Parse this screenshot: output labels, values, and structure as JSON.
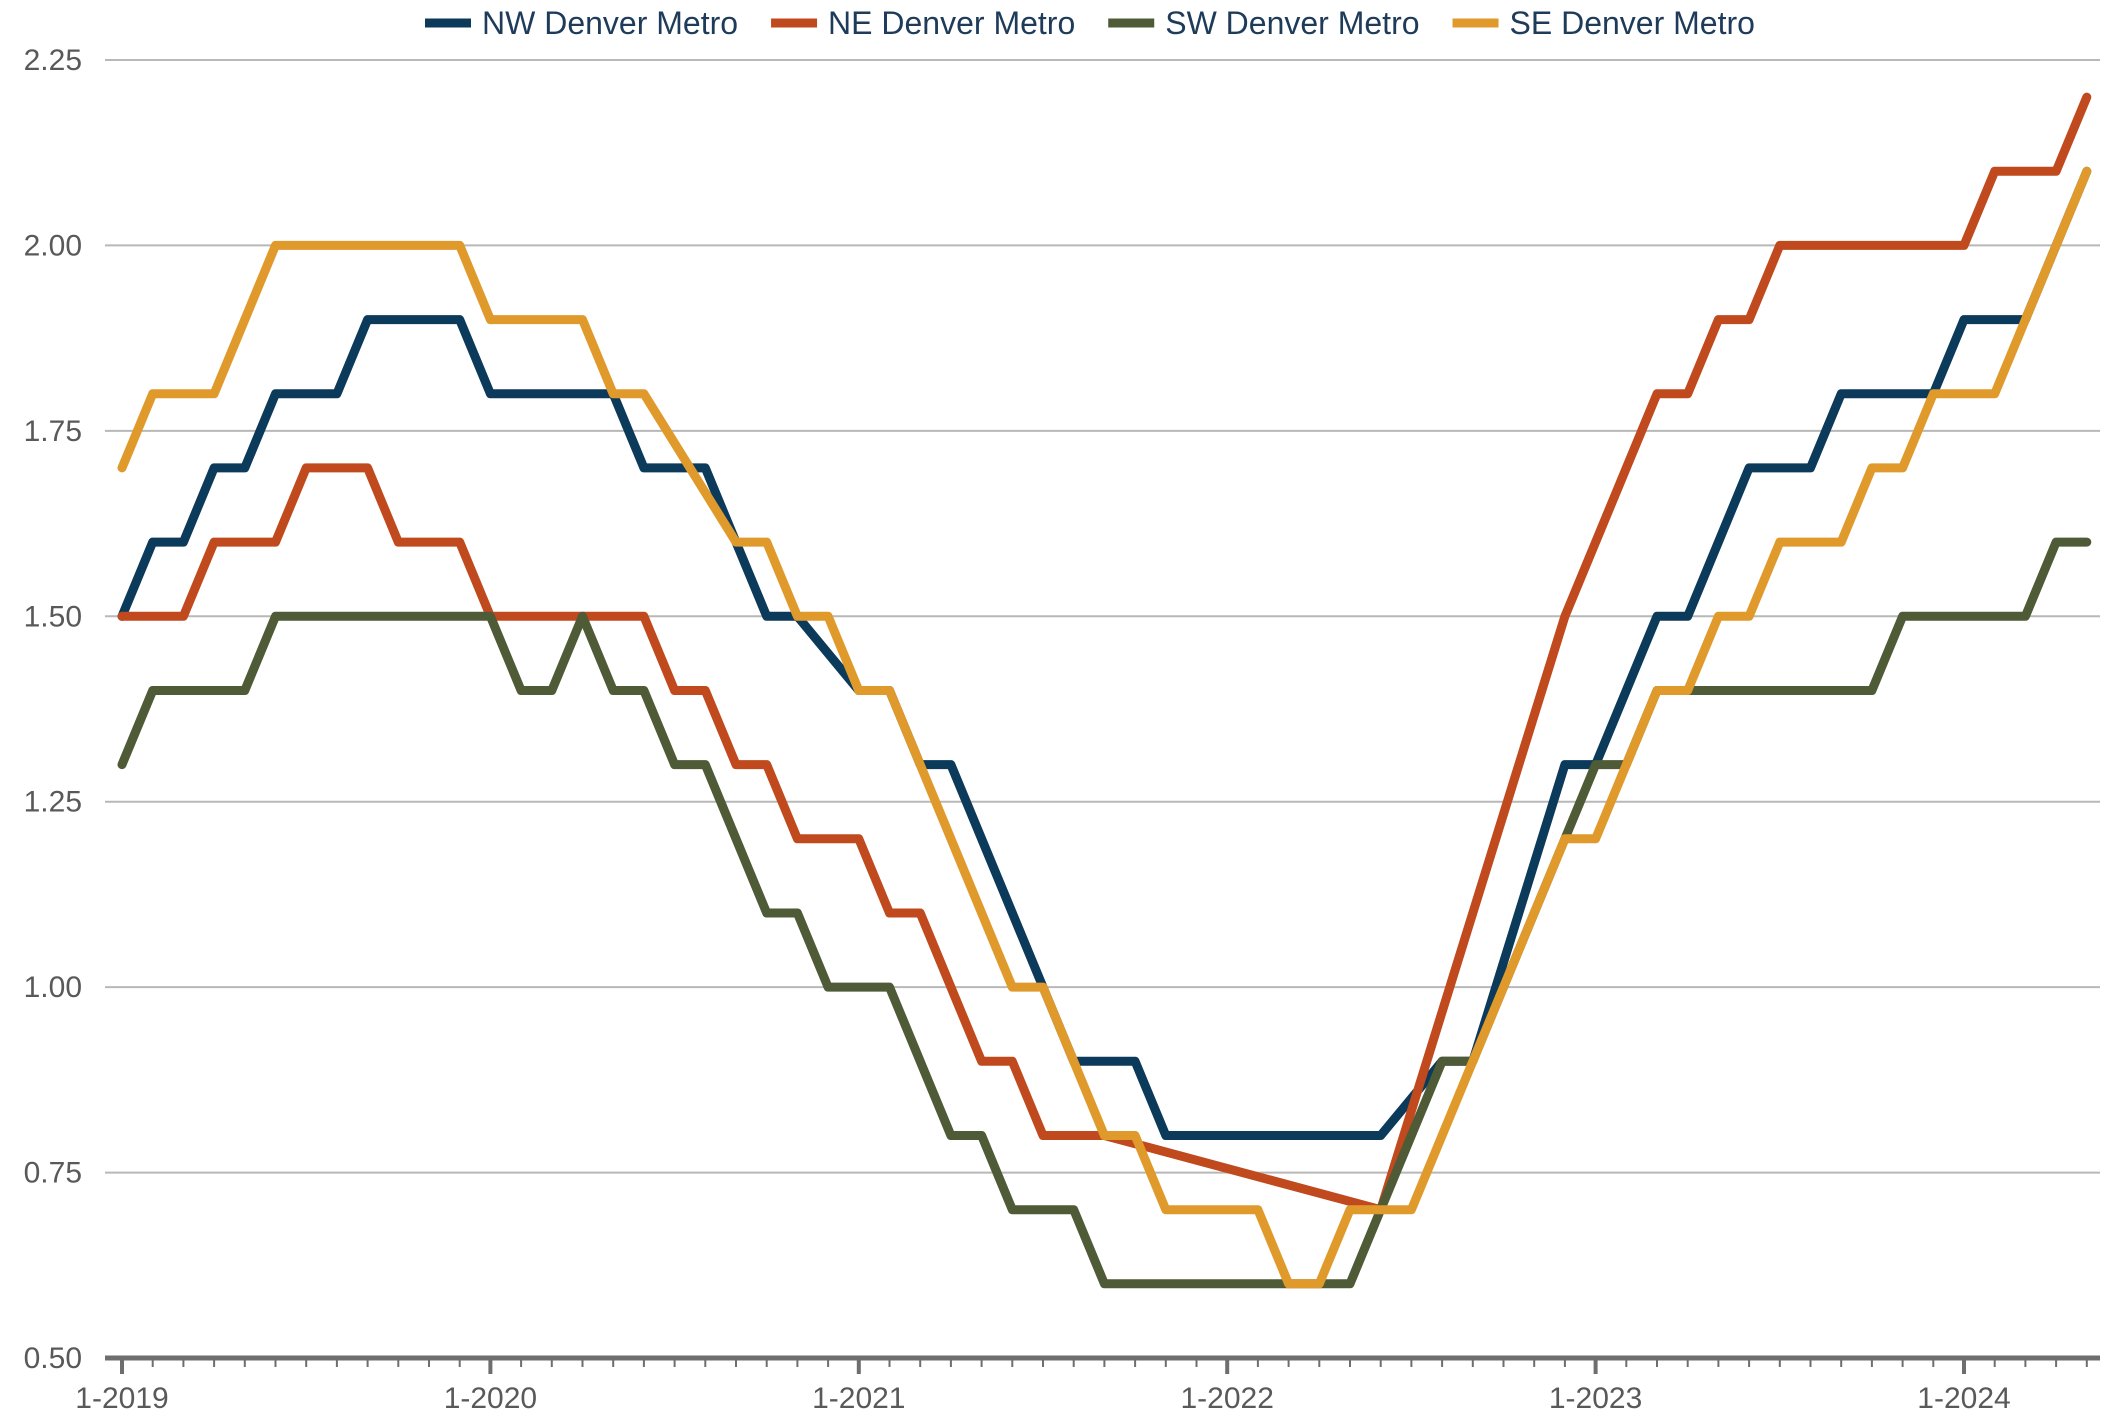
{
  "chart_data": {
    "type": "line",
    "title": "",
    "xlabel": "",
    "ylabel": "",
    "x_tick_labels": [
      "1-2019",
      "1-2020",
      "1-2021",
      "1-2022",
      "1-2023",
      "1-2024"
    ],
    "y_tick_labels": [
      "0.50",
      "0.75",
      "1.00",
      "1.25",
      "1.50",
      "1.75",
      "2.00",
      "2.25"
    ],
    "ylim": [
      0.5,
      2.25
    ],
    "x_range": [
      "2019-01",
      "2024-05"
    ],
    "grid": "horizontal",
    "legend_position": "top",
    "series": [
      {
        "name": "NW Denver Metro",
        "color": "#0b3a5a",
        "points": [
          [
            "2019-01",
            1.5
          ],
          [
            "2019-02",
            1.6
          ],
          [
            "2019-03",
            1.6
          ],
          [
            "2019-04",
            1.7
          ],
          [
            "2019-05",
            1.7
          ],
          [
            "2019-06",
            1.8
          ],
          [
            "2019-08",
            1.8
          ],
          [
            "2019-09",
            1.9
          ],
          [
            "2019-12",
            1.9
          ],
          [
            "2020-01",
            1.8
          ],
          [
            "2020-05",
            1.8
          ],
          [
            "2020-06",
            1.7
          ],
          [
            "2020-08",
            1.7
          ],
          [
            "2020-10",
            1.5
          ],
          [
            "2020-11",
            1.5
          ],
          [
            "2021-01",
            1.4
          ],
          [
            "2021-02",
            1.4
          ],
          [
            "2021-03",
            1.3
          ],
          [
            "2021-04",
            1.3
          ],
          [
            "2021-08",
            0.9
          ],
          [
            "2021-10",
            0.9
          ],
          [
            "2021-11",
            0.8
          ],
          [
            "2022-06",
            0.8
          ],
          [
            "2022-08",
            0.9
          ],
          [
            "2022-09",
            0.9
          ],
          [
            "2022-12",
            1.3
          ],
          [
            "2023-01",
            1.3
          ],
          [
            "2023-03",
            1.5
          ],
          [
            "2023-04",
            1.5
          ],
          [
            "2023-06",
            1.7
          ],
          [
            "2023-08",
            1.7
          ],
          [
            "2023-09",
            1.8
          ],
          [
            "2023-12",
            1.8
          ],
          [
            "2024-01",
            1.9
          ],
          [
            "2024-03",
            1.9
          ],
          [
            "2024-05",
            2.1
          ]
        ]
      },
      {
        "name": "NE Denver Metro",
        "color": "#c04a1e",
        "points": [
          [
            "2019-01",
            1.5
          ],
          [
            "2019-03",
            1.5
          ],
          [
            "2019-04",
            1.6
          ],
          [
            "2019-06",
            1.6
          ],
          [
            "2019-07",
            1.7
          ],
          [
            "2019-09",
            1.7
          ],
          [
            "2019-10",
            1.6
          ],
          [
            "2019-12",
            1.6
          ],
          [
            "2020-01",
            1.5
          ],
          [
            "2020-06",
            1.5
          ],
          [
            "2020-07",
            1.4
          ],
          [
            "2020-08",
            1.4
          ],
          [
            "2020-09",
            1.3
          ],
          [
            "2020-10",
            1.3
          ],
          [
            "2020-11",
            1.2
          ],
          [
            "2021-01",
            1.2
          ],
          [
            "2021-02",
            1.1
          ],
          [
            "2021-03",
            1.1
          ],
          [
            "2021-05",
            0.9
          ],
          [
            "2021-06",
            0.9
          ],
          [
            "2021-07",
            0.8
          ],
          [
            "2021-09",
            0.8
          ],
          [
            "2022-06",
            0.7
          ],
          [
            "2022-12",
            1.5
          ],
          [
            "2023-03",
            1.8
          ],
          [
            "2023-04",
            1.8
          ],
          [
            "2023-05",
            1.9
          ],
          [
            "2023-06",
            1.9
          ],
          [
            "2023-07",
            2.0
          ],
          [
            "2024-01",
            2.0
          ],
          [
            "2024-02",
            2.1
          ],
          [
            "2024-04",
            2.1
          ],
          [
            "2024-05",
            2.2
          ]
        ]
      },
      {
        "name": "SW Denver Metro",
        "color": "#4f5a36",
        "points": [
          [
            "2019-01",
            1.3
          ],
          [
            "2019-02",
            1.4
          ],
          [
            "2019-05",
            1.4
          ],
          [
            "2019-06",
            1.5
          ],
          [
            "2020-01",
            1.5
          ],
          [
            "2020-02",
            1.4
          ],
          [
            "2020-03",
            1.4
          ],
          [
            "2020-04",
            1.5
          ],
          [
            "2020-05",
            1.4
          ],
          [
            "2020-06",
            1.4
          ],
          [
            "2020-07",
            1.3
          ],
          [
            "2020-08",
            1.3
          ],
          [
            "2020-10",
            1.1
          ],
          [
            "2020-11",
            1.1
          ],
          [
            "2020-12",
            1.0
          ],
          [
            "2021-02",
            1.0
          ],
          [
            "2021-04",
            0.8
          ],
          [
            "2021-05",
            0.8
          ],
          [
            "2021-06",
            0.7
          ],
          [
            "2021-08",
            0.7
          ],
          [
            "2021-09",
            0.6
          ],
          [
            "2022-05",
            0.6
          ],
          [
            "2022-08",
            0.9
          ],
          [
            "2022-09",
            0.9
          ],
          [
            "2022-12",
            1.2
          ],
          [
            "2023-01",
            1.3
          ],
          [
            "2023-02",
            1.3
          ],
          [
            "2023-03",
            1.4
          ],
          [
            "2023-10",
            1.4
          ],
          [
            "2023-11",
            1.5
          ],
          [
            "2024-03",
            1.5
          ],
          [
            "2024-04",
            1.6
          ],
          [
            "2024-05",
            1.6
          ]
        ]
      },
      {
        "name": "SE Denver Metro",
        "color": "#e09a2c",
        "points": [
          [
            "2019-01",
            1.7
          ],
          [
            "2019-02",
            1.8
          ],
          [
            "2019-04",
            1.8
          ],
          [
            "2019-06",
            2.0
          ],
          [
            "2019-12",
            2.0
          ],
          [
            "2020-01",
            1.9
          ],
          [
            "2020-04",
            1.9
          ],
          [
            "2020-05",
            1.8
          ],
          [
            "2020-06",
            1.8
          ],
          [
            "2020-09",
            1.6
          ],
          [
            "2020-10",
            1.6
          ],
          [
            "2020-11",
            1.5
          ],
          [
            "2020-12",
            1.5
          ],
          [
            "2021-01",
            1.4
          ],
          [
            "2021-02",
            1.4
          ],
          [
            "2021-06",
            1.0
          ],
          [
            "2021-07",
            1.0
          ],
          [
            "2021-09",
            0.8
          ],
          [
            "2021-10",
            0.8
          ],
          [
            "2021-11",
            0.7
          ],
          [
            "2022-02",
            0.7
          ],
          [
            "2022-03",
            0.6
          ],
          [
            "2022-04",
            0.6
          ],
          [
            "2022-05",
            0.7
          ],
          [
            "2022-07",
            0.7
          ],
          [
            "2022-12",
            1.2
          ],
          [
            "2023-01",
            1.2
          ],
          [
            "2023-03",
            1.4
          ],
          [
            "2023-04",
            1.4
          ],
          [
            "2023-05",
            1.5
          ],
          [
            "2023-06",
            1.5
          ],
          [
            "2023-07",
            1.6
          ],
          [
            "2023-09",
            1.6
          ],
          [
            "2023-10",
            1.7
          ],
          [
            "2023-11",
            1.7
          ],
          [
            "2023-12",
            1.8
          ],
          [
            "2024-02",
            1.8
          ],
          [
            "2024-05",
            2.1
          ]
        ]
      }
    ]
  }
}
